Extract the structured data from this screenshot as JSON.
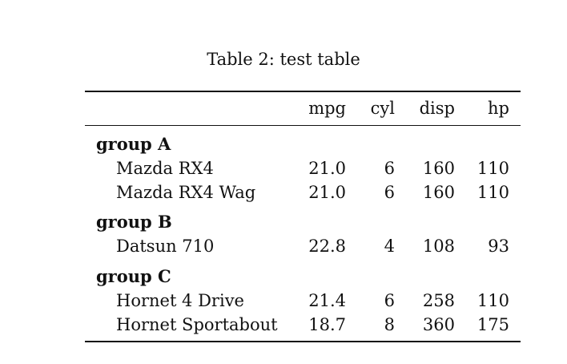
{
  "caption": "Table 2: test table",
  "columns": [
    "mpg",
    "cyl",
    "disp",
    "hp"
  ],
  "groups": [
    {
      "label": "group A",
      "rows": [
        {
          "name": "Mazda RX4",
          "mpg": "21.0",
          "cyl": "6",
          "disp": "160",
          "hp": "110"
        },
        {
          "name": "Mazda RX4 Wag",
          "mpg": "21.0",
          "cyl": "6",
          "disp": "160",
          "hp": "110"
        }
      ]
    },
    {
      "label": "group B",
      "rows": [
        {
          "name": "Datsun 710",
          "mpg": "22.8",
          "cyl": "4",
          "disp": "108",
          "hp": "93"
        }
      ]
    },
    {
      "label": "group C",
      "rows": [
        {
          "name": "Hornet 4 Drive",
          "mpg": "21.4",
          "cyl": "6",
          "disp": "258",
          "hp": "110"
        },
        {
          "name": "Hornet Sportabout",
          "mpg": "18.7",
          "cyl": "8",
          "disp": "360",
          "hp": "175"
        }
      ]
    }
  ]
}
